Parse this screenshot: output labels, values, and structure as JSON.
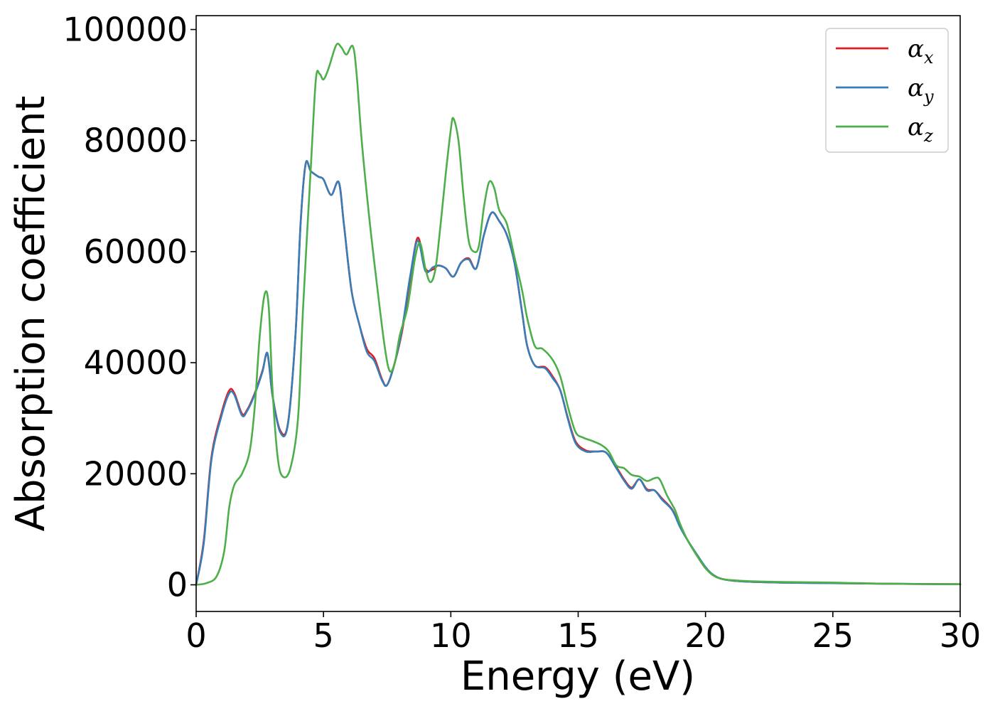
{
  "chart_data": {
    "type": "line",
    "title": "",
    "xlabel": "Energy (eV)",
    "ylabel": "Absorption coefficient",
    "xlim": [
      0,
      30
    ],
    "ylim": [
      -4800,
      102500
    ],
    "xticks": [
      0,
      5,
      10,
      15,
      20,
      25,
      30
    ],
    "yticks": [
      0,
      20000,
      40000,
      60000,
      80000,
      100000
    ],
    "grid": false,
    "legend_position": "top-right",
    "series": [
      {
        "name": "αx",
        "legend_symbol": "α",
        "legend_subscript": "x",
        "color": "#e41a1c",
        "points": [
          [
            0,
            0
          ],
          [
            0.3,
            8000
          ],
          [
            0.6,
            23000
          ],
          [
            1.0,
            31000
          ],
          [
            1.3,
            35000
          ],
          [
            1.5,
            34500
          ],
          [
            1.8,
            30800
          ],
          [
            2.0,
            31500
          ],
          [
            2.3,
            34500
          ],
          [
            2.6,
            38500
          ],
          [
            2.8,
            41500
          ],
          [
            3.0,
            34000
          ],
          [
            3.3,
            27800
          ],
          [
            3.6,
            29000
          ],
          [
            3.9,
            45000
          ],
          [
            4.1,
            65000
          ],
          [
            4.3,
            75800
          ],
          [
            4.5,
            74500
          ],
          [
            4.8,
            73500
          ],
          [
            5.0,
            73000
          ],
          [
            5.3,
            70200
          ],
          [
            5.6,
            72500
          ],
          [
            5.8,
            65000
          ],
          [
            6.1,
            53000
          ],
          [
            6.4,
            47000
          ],
          [
            6.7,
            42500
          ],
          [
            7.0,
            40800
          ],
          [
            7.3,
            37000
          ],
          [
            7.5,
            36000
          ],
          [
            7.8,
            40000
          ],
          [
            8.1,
            46000
          ],
          [
            8.4,
            55000
          ],
          [
            8.7,
            62500
          ],
          [
            9.0,
            57000
          ],
          [
            9.3,
            56800
          ],
          [
            9.5,
            57500
          ],
          [
            9.8,
            57000
          ],
          [
            10.1,
            55500
          ],
          [
            10.4,
            58000
          ],
          [
            10.7,
            58800
          ],
          [
            11.0,
            57000
          ],
          [
            11.3,
            63000
          ],
          [
            11.6,
            67000
          ],
          [
            11.9,
            65500
          ],
          [
            12.2,
            63000
          ],
          [
            12.5,
            58000
          ],
          [
            12.8,
            49000
          ],
          [
            13.0,
            43000
          ],
          [
            13.3,
            39500
          ],
          [
            13.7,
            39200
          ],
          [
            14.0,
            37500
          ],
          [
            14.3,
            35000
          ],
          [
            14.6,
            30000
          ],
          [
            14.9,
            25800
          ],
          [
            15.3,
            24200
          ],
          [
            15.7,
            24000
          ],
          [
            16.1,
            23800
          ],
          [
            16.5,
            21200
          ],
          [
            16.8,
            19000
          ],
          [
            17.1,
            17500
          ],
          [
            17.4,
            19000
          ],
          [
            17.7,
            17200
          ],
          [
            18.0,
            17000
          ],
          [
            18.3,
            15500
          ],
          [
            18.7,
            13500
          ],
          [
            19.0,
            10500
          ],
          [
            19.3,
            8000
          ],
          [
            19.7,
            5000
          ],
          [
            20.0,
            3000
          ],
          [
            20.3,
            1800
          ],
          [
            20.7,
            1000
          ],
          [
            21.5,
            600
          ],
          [
            23,
            400
          ],
          [
            25,
            300
          ],
          [
            27,
            200
          ],
          [
            30,
            100
          ]
        ]
      },
      {
        "name": "αy",
        "legend_symbol": "α",
        "legend_subscript": "y",
        "color": "#377eb8",
        "points": [
          [
            0,
            0
          ],
          [
            0.3,
            7500
          ],
          [
            0.6,
            22500
          ],
          [
            1.0,
            30500
          ],
          [
            1.3,
            34500
          ],
          [
            1.5,
            34200
          ],
          [
            1.8,
            30500
          ],
          [
            2.0,
            31300
          ],
          [
            2.3,
            34300
          ],
          [
            2.6,
            38300
          ],
          [
            2.8,
            41700
          ],
          [
            3.0,
            34000
          ],
          [
            3.3,
            27500
          ],
          [
            3.6,
            28800
          ],
          [
            3.9,
            45000
          ],
          [
            4.1,
            65000
          ],
          [
            4.3,
            75800
          ],
          [
            4.5,
            74500
          ],
          [
            4.8,
            73500
          ],
          [
            5.0,
            73000
          ],
          [
            5.3,
            70200
          ],
          [
            5.6,
            72500
          ],
          [
            5.8,
            65000
          ],
          [
            6.1,
            53000
          ],
          [
            6.4,
            47000
          ],
          [
            6.7,
            42000
          ],
          [
            7.0,
            40300
          ],
          [
            7.3,
            36800
          ],
          [
            7.5,
            36000
          ],
          [
            7.8,
            40000
          ],
          [
            8.1,
            46500
          ],
          [
            8.4,
            55500
          ],
          [
            8.7,
            62000
          ],
          [
            9.0,
            56500
          ],
          [
            9.3,
            57200
          ],
          [
            9.5,
            57500
          ],
          [
            9.8,
            57000
          ],
          [
            10.1,
            55500
          ],
          [
            10.4,
            58000
          ],
          [
            10.7,
            58600
          ],
          [
            11.0,
            57000
          ],
          [
            11.3,
            63000
          ],
          [
            11.6,
            67000
          ],
          [
            11.9,
            65500
          ],
          [
            12.2,
            63000
          ],
          [
            12.5,
            58000
          ],
          [
            12.8,
            49000
          ],
          [
            13.0,
            43000
          ],
          [
            13.3,
            39500
          ],
          [
            13.7,
            39000
          ],
          [
            14.0,
            37200
          ],
          [
            14.3,
            35000
          ],
          [
            14.6,
            29800
          ],
          [
            14.9,
            25500
          ],
          [
            15.3,
            24000
          ],
          [
            15.7,
            24000
          ],
          [
            16.1,
            23800
          ],
          [
            16.5,
            21000
          ],
          [
            16.8,
            18800
          ],
          [
            17.1,
            17300
          ],
          [
            17.4,
            19000
          ],
          [
            17.7,
            17000
          ],
          [
            18.0,
            17000
          ],
          [
            18.3,
            15300
          ],
          [
            18.7,
            13400
          ],
          [
            19.0,
            10400
          ],
          [
            19.3,
            8000
          ],
          [
            19.7,
            5200
          ],
          [
            20.0,
            3200
          ],
          [
            20.3,
            1800
          ],
          [
            20.7,
            1000
          ],
          [
            21.5,
            600
          ],
          [
            23,
            400
          ],
          [
            25,
            300
          ],
          [
            27,
            200
          ],
          [
            30,
            100
          ]
        ]
      },
      {
        "name": "αz",
        "legend_symbol": "α",
        "legend_subscript": "z",
        "color": "#4daf4a",
        "points": [
          [
            0,
            0
          ],
          [
            0.4,
            300
          ],
          [
            0.8,
            1500
          ],
          [
            1.1,
            6000
          ],
          [
            1.3,
            14000
          ],
          [
            1.5,
            18000
          ],
          [
            1.8,
            20000
          ],
          [
            2.1,
            24000
          ],
          [
            2.3,
            32000
          ],
          [
            2.5,
            45000
          ],
          [
            2.7,
            52500
          ],
          [
            2.85,
            50000
          ],
          [
            3.0,
            35000
          ],
          [
            3.2,
            23000
          ],
          [
            3.4,
            19500
          ],
          [
            3.7,
            21000
          ],
          [
            4.0,
            30000
          ],
          [
            4.2,
            50000
          ],
          [
            4.5,
            75000
          ],
          [
            4.7,
            91000
          ],
          [
            4.85,
            92000
          ],
          [
            5.0,
            91000
          ],
          [
            5.2,
            93000
          ],
          [
            5.5,
            97200
          ],
          [
            5.7,
            96800
          ],
          [
            5.9,
            95500
          ],
          [
            6.15,
            97000
          ],
          [
            6.3,
            92000
          ],
          [
            6.5,
            80000
          ],
          [
            6.8,
            66000
          ],
          [
            7.1,
            54000
          ],
          [
            7.4,
            43000
          ],
          [
            7.6,
            38500
          ],
          [
            7.8,
            40000
          ],
          [
            8.0,
            45000
          ],
          [
            8.3,
            50000
          ],
          [
            8.6,
            59000
          ],
          [
            8.8,
            61500
          ],
          [
            9.0,
            57000
          ],
          [
            9.2,
            54500
          ],
          [
            9.4,
            57000
          ],
          [
            9.6,
            65000
          ],
          [
            9.8,
            74000
          ],
          [
            10.0,
            82000
          ],
          [
            10.1,
            84000
          ],
          [
            10.3,
            80000
          ],
          [
            10.5,
            70000
          ],
          [
            10.7,
            62000
          ],
          [
            10.9,
            60000
          ],
          [
            11.1,
            61000
          ],
          [
            11.3,
            68000
          ],
          [
            11.5,
            72500
          ],
          [
            11.7,
            71500
          ],
          [
            11.9,
            67500
          ],
          [
            12.2,
            65000
          ],
          [
            12.5,
            59000
          ],
          [
            12.8,
            53000
          ],
          [
            13.0,
            48000
          ],
          [
            13.3,
            43000
          ],
          [
            13.6,
            42500
          ],
          [
            14.0,
            40500
          ],
          [
            14.3,
            37500
          ],
          [
            14.6,
            32000
          ],
          [
            14.9,
            27500
          ],
          [
            15.2,
            26500
          ],
          [
            15.5,
            26000
          ],
          [
            15.9,
            25200
          ],
          [
            16.2,
            24000
          ],
          [
            16.5,
            21500
          ],
          [
            16.8,
            21000
          ],
          [
            17.1,
            19800
          ],
          [
            17.4,
            19500
          ],
          [
            17.7,
            18700
          ],
          [
            18.0,
            19200
          ],
          [
            18.2,
            19000
          ],
          [
            18.5,
            16000
          ],
          [
            18.8,
            13500
          ],
          [
            19.0,
            11000
          ],
          [
            19.3,
            8000
          ],
          [
            19.7,
            5000
          ],
          [
            20.0,
            3000
          ],
          [
            20.3,
            1700
          ],
          [
            20.7,
            1000
          ],
          [
            21.5,
            700
          ],
          [
            23,
            500
          ],
          [
            25,
            400
          ],
          [
            27,
            200
          ],
          [
            30,
            100
          ]
        ]
      }
    ]
  }
}
